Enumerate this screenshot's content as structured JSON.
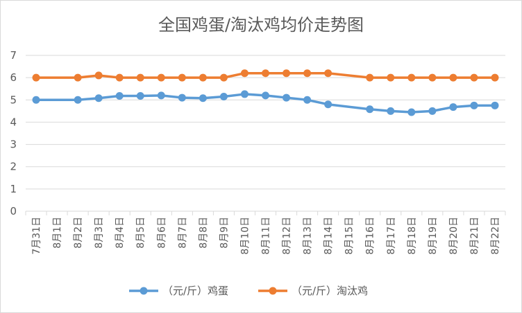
{
  "chart_data": {
    "type": "line",
    "title": "全国鸡蛋/淘汰鸡均价走势图",
    "xlabel": "",
    "ylabel": "",
    "ylim": [
      0,
      7
    ],
    "yticks": [
      0,
      1,
      2,
      3,
      4,
      5,
      6,
      7
    ],
    "grid": true,
    "legend_position": "bottom",
    "categories": [
      "7月31日",
      "8月1日",
      "8月2日",
      "8月3日",
      "8月4日",
      "8月5日",
      "8月6日",
      "8月7日",
      "8月8日",
      "8月9日",
      "8月10日",
      "8月11日",
      "8月12日",
      "8月13日",
      "8月14日",
      "8月15日",
      "8月16日",
      "8月17日",
      "8月18日",
      "8月19日",
      "8月20日",
      "8月21日",
      "8月22日"
    ],
    "series": [
      {
        "name": "（元/斤）鸡蛋",
        "color": "#5b9bd5",
        "values": [
          5.0,
          null,
          5.0,
          5.08,
          5.18,
          5.18,
          5.2,
          5.1,
          5.08,
          5.15,
          5.26,
          5.2,
          5.1,
          5.0,
          4.8,
          null,
          4.58,
          4.5,
          4.45,
          4.5,
          4.68,
          4.75,
          4.75
        ]
      },
      {
        "name": "（元/斤）淘汰鸡",
        "color": "#ed7d31",
        "values": [
          6.0,
          null,
          6.0,
          6.1,
          6.0,
          6.0,
          6.0,
          6.0,
          6.0,
          6.0,
          6.2,
          6.2,
          6.2,
          6.2,
          6.2,
          null,
          6.0,
          6.0,
          6.0,
          6.0,
          6.0,
          6.0,
          6.0
        ]
      }
    ]
  }
}
